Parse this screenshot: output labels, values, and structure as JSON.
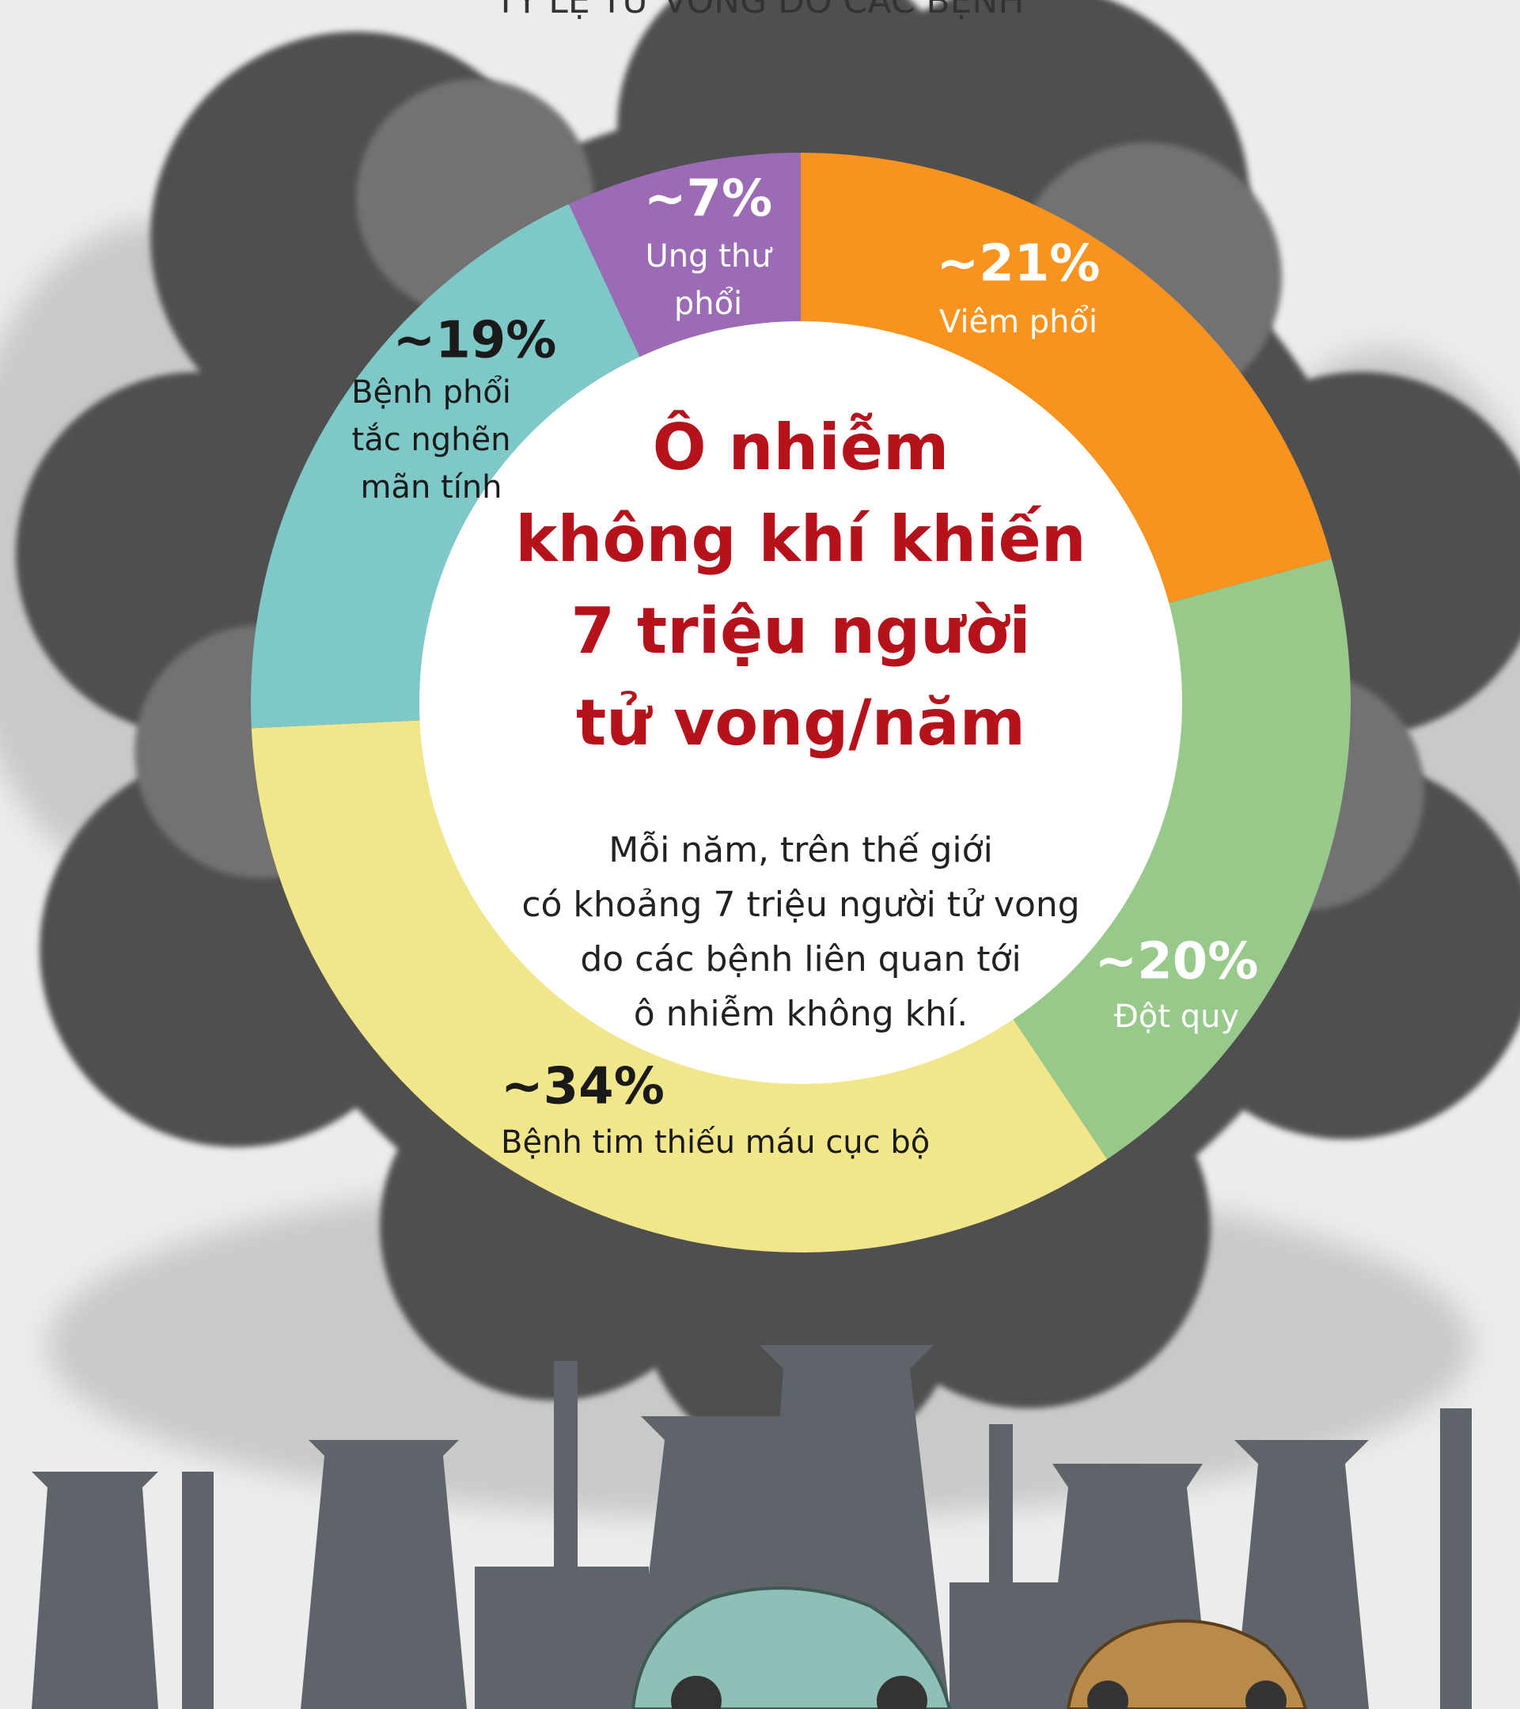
{
  "chart_data": {
    "type": "pie",
    "title": "TỶ LỆ TỬ VONG DO CÁC BỆNH",
    "heading": [
      "Ô nhiễm",
      "không khí khiến",
      "7 triệu người",
      "tử vong/năm"
    ],
    "description": [
      "Mỗi năm, trên thế giới",
      "có khoảng 7 triệu người tử vong",
      "do các bệnh liên quan tới",
      "ô nhiễm không khí."
    ],
    "categories": [
      [
        "Viêm phổi"
      ],
      [
        "Đột quy"
      ],
      [
        "Bệnh tim thiếu máu cục bộ"
      ],
      [
        "Bệnh phổi",
        "tắc nghẽn",
        "mãn tính"
      ],
      [
        "Ung thư",
        "phổi"
      ]
    ],
    "values": [
      21,
      20,
      34,
      19,
      7
    ],
    "value_labels": [
      "~21%",
      "~20%",
      "~34%",
      "~19%",
      "~7%"
    ],
    "colors": [
      "#f7931e",
      "#97c98a",
      "#f1e68a",
      "#7ec8c8",
      "#9b6bb5"
    ]
  }
}
